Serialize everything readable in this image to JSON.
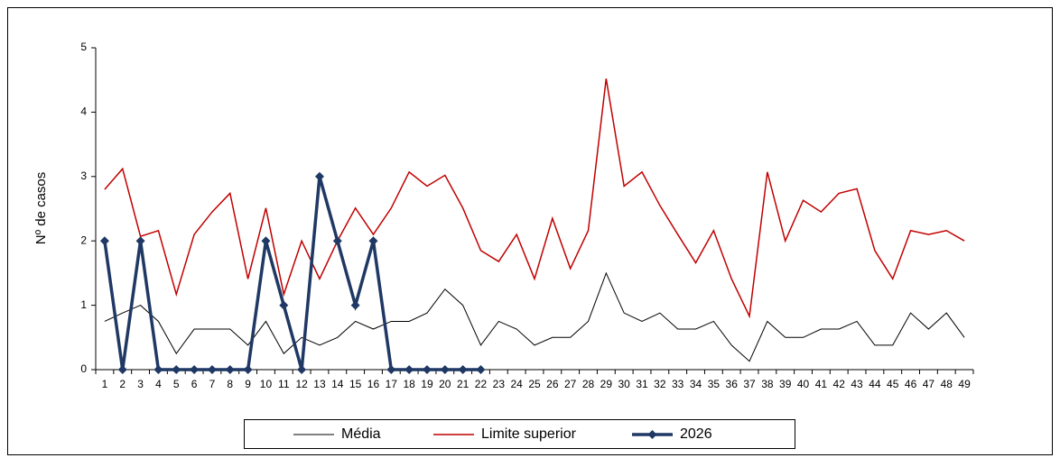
{
  "chart_data": {
    "type": "line",
    "y_label": "Nº de casos",
    "categories": [
      1,
      2,
      3,
      4,
      5,
      6,
      7,
      8,
      9,
      10,
      11,
      12,
      13,
      14,
      15,
      16,
      17,
      18,
      19,
      20,
      21,
      22,
      23,
      24,
      25,
      26,
      27,
      28,
      29,
      30,
      31,
      32,
      33,
      34,
      35,
      36,
      37,
      38,
      39,
      40,
      41,
      42,
      43,
      44,
      45,
      46,
      47,
      48,
      49
    ],
    "series": [
      {
        "name": "Média",
        "color": "#000000",
        "width": 1,
        "marker": false,
        "values": [
          0.75,
          0.88,
          1.0,
          0.75,
          0.25,
          0.63,
          0.63,
          0.63,
          0.38,
          0.75,
          0.25,
          0.5,
          0.38,
          0.5,
          0.75,
          0.63,
          0.75,
          0.75,
          0.88,
          1.25,
          1.0,
          0.38,
          0.75,
          0.63,
          0.38,
          0.5,
          0.5,
          0.75,
          1.5,
          0.88,
          0.75,
          0.88,
          0.63,
          0.63,
          0.75,
          0.38,
          0.13,
          0.75,
          0.5,
          0.5,
          0.63,
          0.63,
          0.75,
          0.38,
          0.38,
          0.88,
          0.63,
          0.88,
          0.5
        ]
      },
      {
        "name": "Limite superior",
        "color": "#c00000",
        "width": 1.5,
        "marker": false,
        "values": [
          2.8,
          3.12,
          2.07,
          2.16,
          1.17,
          2.1,
          2.45,
          2.74,
          1.41,
          2.51,
          1.17,
          2.0,
          1.41,
          2.0,
          2.51,
          2.1,
          2.51,
          3.07,
          2.85,
          3.02,
          2.51,
          1.85,
          1.68,
          2.1,
          1.41,
          2.35,
          1.57,
          2.16,
          4.52,
          2.85,
          3.07,
          2.55,
          2.1,
          1.66,
          2.16,
          1.41,
          0.83,
          3.07,
          2.0,
          2.63,
          2.45,
          2.74,
          2.81,
          1.85,
          1.41,
          2.16,
          2.1,
          2.16,
          2.0
        ]
      },
      {
        "name": "2026",
        "color": "#1f3864",
        "width": 3.5,
        "marker": true,
        "values": [
          2,
          0,
          2,
          0,
          0,
          0,
          0,
          0,
          0,
          2,
          1,
          0,
          3,
          2,
          1,
          2,
          0,
          0,
          0,
          0,
          0,
          0,
          null,
          null,
          null,
          null,
          null,
          null,
          null,
          null,
          null,
          null,
          null,
          null,
          null,
          null,
          null,
          null,
          null,
          null,
          null,
          null,
          null,
          null,
          null,
          null,
          null,
          null,
          null
        ]
      }
    ],
    "ylim": [
      0,
      5
    ],
    "yticks": [
      0,
      1,
      2,
      3,
      4,
      5
    ],
    "grid": false,
    "legend": "bottom"
  }
}
